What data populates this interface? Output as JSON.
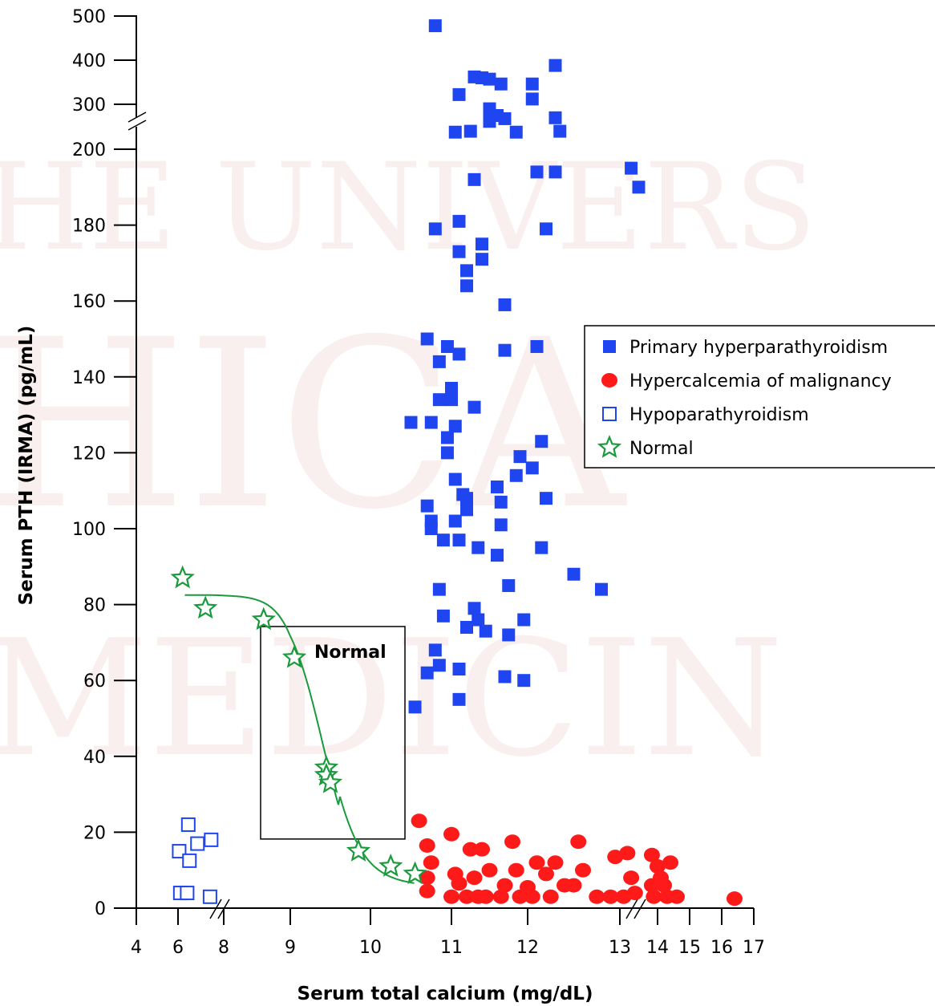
{
  "chart_data": {
    "type": "scatter",
    "xlabel": "Serum total calcium (mg/dL)",
    "ylabel": "Serum PTH (IRMA) (pg/mL)",
    "x_ticks": [
      "4",
      "6",
      "8",
      "9",
      "10",
      "11",
      "12",
      "13",
      "14",
      "15",
      "16",
      "17"
    ],
    "y_ticks": [
      "0",
      "20",
      "40",
      "60",
      "80",
      "100",
      "120",
      "140",
      "160",
      "180",
      "200",
      "300",
      "400",
      "500"
    ],
    "x_axis_breaks": [
      "between 6 and 8",
      "between 13 and 14"
    ],
    "y_axis_breaks": [
      "between 200 and 300"
    ],
    "grid": false,
    "legend_position": "right",
    "annotation_box": {
      "label": "Normal",
      "x_range": [
        8.6,
        10.4
      ],
      "y_range": [
        18,
        74
      ]
    },
    "series": [
      {
        "name": "Primary hyperparathyroidism",
        "marker": "filled-square",
        "color": "#1f45f0",
        "points": [
          [
            10.8,
            478
          ],
          [
            11.3,
            362
          ],
          [
            11.4,
            360
          ],
          [
            11.5,
            357
          ],
          [
            11.65,
            346
          ],
          [
            12.05,
            346
          ],
          [
            12.3,
            388
          ],
          [
            11.1,
            322
          ],
          [
            12.05,
            312
          ],
          [
            11.5,
            290
          ],
          [
            11.6,
            275
          ],
          [
            12.3,
            270
          ],
          [
            11.7,
            268
          ],
          [
            11.5,
            262
          ],
          [
            11.05,
            238
          ],
          [
            11.25,
            240
          ],
          [
            11.85,
            238
          ],
          [
            12.35,
            240
          ],
          [
            11.3,
            192
          ],
          [
            12.1,
            194
          ],
          [
            12.3,
            194
          ],
          [
            13.3,
            195
          ],
          [
            13.5,
            190
          ],
          [
            10.8,
            179
          ],
          [
            11.1,
            181
          ],
          [
            12.2,
            179
          ],
          [
            11.1,
            173
          ],
          [
            11.4,
            175
          ],
          [
            11.4,
            171
          ],
          [
            11.2,
            168
          ],
          [
            11.2,
            164
          ],
          [
            11.7,
            159
          ],
          [
            10.7,
            150
          ],
          [
            10.95,
            148
          ],
          [
            11.1,
            146
          ],
          [
            10.85,
            144
          ],
          [
            11.7,
            147
          ],
          [
            12.1,
            148
          ],
          [
            11.0,
            137
          ],
          [
            10.85,
            134
          ],
          [
            11.0,
            134
          ],
          [
            11.3,
            132
          ],
          [
            10.5,
            128
          ],
          [
            10.75,
            128
          ],
          [
            11.05,
            127
          ],
          [
            10.95,
            124
          ],
          [
            10.95,
            120
          ],
          [
            12.15,
            123
          ],
          [
            11.9,
            119
          ],
          [
            12.05,
            116
          ],
          [
            11.85,
            114
          ],
          [
            11.05,
            113
          ],
          [
            11.6,
            111
          ],
          [
            11.15,
            109
          ],
          [
            11.2,
            108
          ],
          [
            11.65,
            107
          ],
          [
            12.2,
            108
          ],
          [
            10.7,
            106
          ],
          [
            11.2,
            105
          ],
          [
            11.05,
            102
          ],
          [
            10.75,
            102
          ],
          [
            10.75,
            100
          ],
          [
            11.65,
            101
          ],
          [
            10.9,
            97
          ],
          [
            11.1,
            97
          ],
          [
            11.35,
            95
          ],
          [
            11.6,
            93
          ],
          [
            12.15,
            95
          ],
          [
            12.5,
            88
          ],
          [
            10.85,
            84
          ],
          [
            11.75,
            85
          ],
          [
            12.8,
            84
          ],
          [
            11.3,
            79
          ],
          [
            10.9,
            77
          ],
          [
            11.35,
            76
          ],
          [
            11.95,
            76
          ],
          [
            11.2,
            74
          ],
          [
            11.45,
            73
          ],
          [
            11.75,
            72
          ],
          [
            10.8,
            68
          ],
          [
            10.85,
            64
          ],
          [
            11.1,
            63
          ],
          [
            10.7,
            62
          ],
          [
            11.7,
            61
          ],
          [
            11.95,
            60
          ],
          [
            11.1,
            55
          ],
          [
            10.55,
            53
          ]
        ]
      },
      {
        "name": "Hypercalcemia of malignancy",
        "marker": "filled-circle",
        "color": "#ff1a1a",
        "points": [
          [
            10.6,
            23
          ],
          [
            11.0,
            19.5
          ],
          [
            10.7,
            16.5
          ],
          [
            11.25,
            15.5
          ],
          [
            11.4,
            15.5
          ],
          [
            11.8,
            17.5
          ],
          [
            12.55,
            17.5
          ],
          [
            12.1,
            12
          ],
          [
            12.3,
            12
          ],
          [
            13.2,
            14.5
          ],
          [
            13.85,
            14
          ],
          [
            12.95,
            13.5
          ],
          [
            14.4,
            12
          ],
          [
            14.0,
            11
          ],
          [
            10.75,
            12
          ],
          [
            11.05,
            9
          ],
          [
            11.5,
            10
          ],
          [
            11.85,
            10
          ],
          [
            12.2,
            9
          ],
          [
            12.6,
            10
          ],
          [
            13.3,
            8
          ],
          [
            14.1,
            8
          ],
          [
            10.7,
            8
          ],
          [
            11.3,
            8
          ],
          [
            11.1,
            6.5
          ],
          [
            11.7,
            6
          ],
          [
            12.0,
            5.5
          ],
          [
            12.4,
            6
          ],
          [
            12.5,
            6
          ],
          [
            13.85,
            6
          ],
          [
            14.2,
            6
          ],
          [
            10.7,
            4.5
          ],
          [
            11.0,
            3
          ],
          [
            11.2,
            3
          ],
          [
            11.35,
            3
          ],
          [
            11.45,
            3
          ],
          [
            11.65,
            3
          ],
          [
            11.9,
            3
          ],
          [
            12.05,
            3
          ],
          [
            12.25,
            3
          ],
          [
            12.75,
            3
          ],
          [
            12.9,
            3
          ],
          [
            13.1,
            3
          ],
          [
            13.4,
            4
          ],
          [
            13.9,
            3
          ],
          [
            14.3,
            3
          ],
          [
            14.6,
            3
          ],
          [
            16.4,
            2.5
          ]
        ]
      },
      {
        "name": "Hypoparathyroidism",
        "marker": "open-square",
        "color": "#1f45f0",
        "points": [
          [
            6.45,
            22
          ],
          [
            6.05,
            15
          ],
          [
            6.5,
            12.5
          ],
          [
            6.85,
            17
          ],
          [
            7.45,
            18
          ],
          [
            6.1,
            4
          ],
          [
            6.4,
            4
          ],
          [
            7.4,
            3
          ]
        ]
      },
      {
        "name": "Normal",
        "marker": "open-star",
        "color": "#1a9a3c",
        "points": [
          [
            6.2,
            87
          ],
          [
            7.2,
            79
          ],
          [
            8.6,
            76
          ],
          [
            9.05,
            66
          ],
          [
            9.45,
            37
          ],
          [
            9.45,
            35
          ],
          [
            9.5,
            33
          ],
          [
            9.85,
            15
          ],
          [
            10.25,
            11
          ],
          [
            10.55,
            9
          ]
        ],
        "fitted_curve": true
      }
    ]
  }
}
